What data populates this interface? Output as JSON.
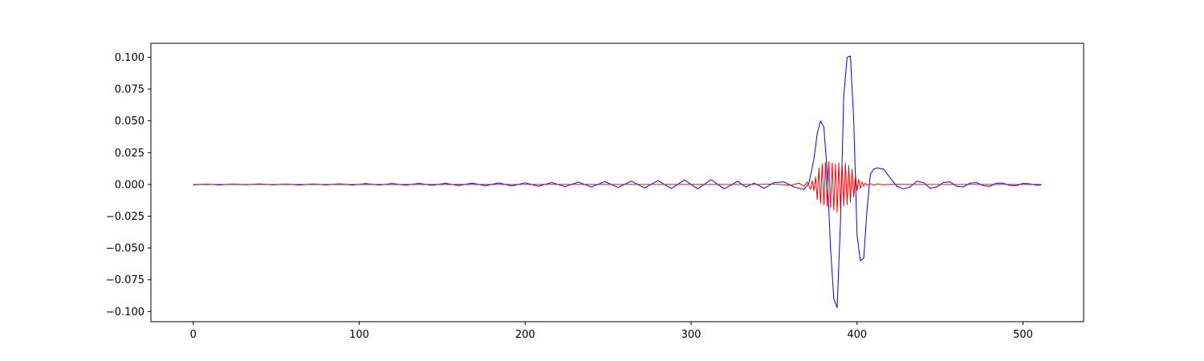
{
  "chart_data": {
    "type": "line",
    "title": "",
    "xlabel": "",
    "ylabel": "",
    "xlim": [
      -25.5,
      536.5
    ],
    "ylim": [
      -0.108,
      0.111
    ],
    "grid": false,
    "legend": "none",
    "x_ticks": [
      {
        "value": 0,
        "label": "0"
      },
      {
        "value": 100,
        "label": "100"
      },
      {
        "value": 200,
        "label": "200"
      },
      {
        "value": 300,
        "label": "300"
      },
      {
        "value": 400,
        "label": "400"
      },
      {
        "value": 500,
        "label": "500"
      }
    ],
    "y_ticks": [
      {
        "value": 0.1,
        "label": "0.100"
      },
      {
        "value": 0.075,
        "label": "0.075"
      },
      {
        "value": 0.05,
        "label": "0.050"
      },
      {
        "value": 0.025,
        "label": "0.025"
      },
      {
        "value": 0.0,
        "label": "0.000"
      },
      {
        "value": -0.025,
        "label": "−0.025"
      },
      {
        "value": -0.05,
        "label": "−0.050"
      },
      {
        "value": -0.075,
        "label": "−0.075"
      },
      {
        "value": -0.1,
        "label": "−0.100"
      }
    ],
    "series": [
      {
        "color": "#0000ff",
        "x": [
          0,
          8,
          16,
          24,
          32,
          40,
          48,
          56,
          64,
          72,
          80,
          88,
          96,
          104,
          112,
          120,
          128,
          136,
          144,
          152,
          160,
          168,
          176,
          184,
          192,
          200,
          208,
          216,
          224,
          232,
          240,
          248,
          256,
          264,
          272,
          280,
          288,
          296,
          304,
          312,
          320,
          328,
          333,
          338,
          344,
          350,
          356,
          362,
          368,
          371,
          374,
          376,
          378,
          380,
          382,
          384,
          386,
          388,
          390,
          392,
          394,
          396,
          398,
          400,
          402,
          404,
          406,
          408,
          410,
          412,
          416,
          420,
          424,
          428,
          432,
          436,
          440,
          444,
          448,
          452,
          456,
          460,
          464,
          468,
          472,
          476,
          480,
          484,
          488,
          492,
          496,
          500,
          504,
          508,
          511
        ],
        "y": [
          -0.0003,
          0.0002,
          -0.0004,
          0.0003,
          -0.0002,
          0.0004,
          -0.0003,
          0.0003,
          -0.0005,
          0.0004,
          -0.0004,
          0.0005,
          -0.0005,
          0.0006,
          -0.0005,
          0.0007,
          -0.0006,
          0.0008,
          -0.0007,
          0.0009,
          -0.0009,
          0.001,
          -0.001,
          0.0012,
          -0.0012,
          0.0013,
          -0.0014,
          0.0015,
          -0.0017,
          0.0018,
          -0.002,
          0.0022,
          -0.0024,
          0.0026,
          -0.0028,
          0.003,
          -0.0032,
          0.0035,
          -0.0035,
          0.0038,
          -0.0035,
          0.0025,
          -0.002,
          0.001,
          -0.003,
          0.0015,
          0.002,
          -0.002,
          -0.004,
          0.001,
          0.02,
          0.04,
          0.05,
          0.045,
          0.01,
          -0.05,
          -0.09,
          -0.097,
          -0.03,
          0.07,
          0.1,
          0.101,
          0.05,
          -0.04,
          -0.06,
          -0.058,
          -0.02,
          0.008,
          0.012,
          0.013,
          0.012,
          0.005,
          -0.0015,
          -0.0035,
          -0.002,
          0.0025,
          0.0015,
          -0.003,
          -0.002,
          0.0015,
          0.002,
          -0.0015,
          -0.002,
          0.001,
          0.0015,
          -0.001,
          -0.0015,
          0.001,
          0.001,
          -0.0008,
          -0.001,
          0.0008,
          0.0005,
          -0.0006,
          -0.0005
        ]
      },
      {
        "color": "#ff0000",
        "x": [
          0,
          20,
          40,
          60,
          80,
          100,
          120,
          140,
          160,
          180,
          200,
          220,
          240,
          260,
          280,
          300,
          320,
          340,
          350,
          360,
          365,
          368,
          370,
          372,
          373,
          374,
          375,
          376,
          377,
          378,
          379,
          380,
          381,
          382,
          383,
          384,
          385,
          386,
          387,
          388,
          389,
          390,
          391,
          392,
          393,
          394,
          395,
          396,
          397,
          398,
          399,
          400,
          401,
          402,
          403,
          404,
          405,
          406,
          408,
          410,
          412,
          416,
          420,
          440,
          460,
          480,
          500,
          511
        ],
        "y": [
          0,
          0,
          0,
          0,
          0,
          0,
          0,
          0,
          0,
          0,
          0,
          0,
          0,
          0,
          0,
          0,
          0,
          0,
          0.0003,
          -0.0006,
          0.001,
          -0.0015,
          0.002,
          -0.004,
          0.003,
          -0.005,
          0.006,
          -0.012,
          0.013,
          -0.015,
          0.016,
          -0.016,
          0.017,
          -0.017,
          0.018,
          -0.018,
          0.017,
          -0.02,
          0.016,
          -0.022,
          0.017,
          -0.019,
          0.016,
          -0.017,
          0.017,
          -0.016,
          0.015,
          -0.014,
          0.012,
          -0.01,
          0.008,
          -0.005,
          0.004,
          -0.003,
          0.002,
          -0.0015,
          0.001,
          -0.0008,
          0.0005,
          -0.0004,
          0.0003,
          -0.0002,
          0.0001,
          0,
          0,
          0,
          0,
          0
        ]
      }
    ]
  }
}
